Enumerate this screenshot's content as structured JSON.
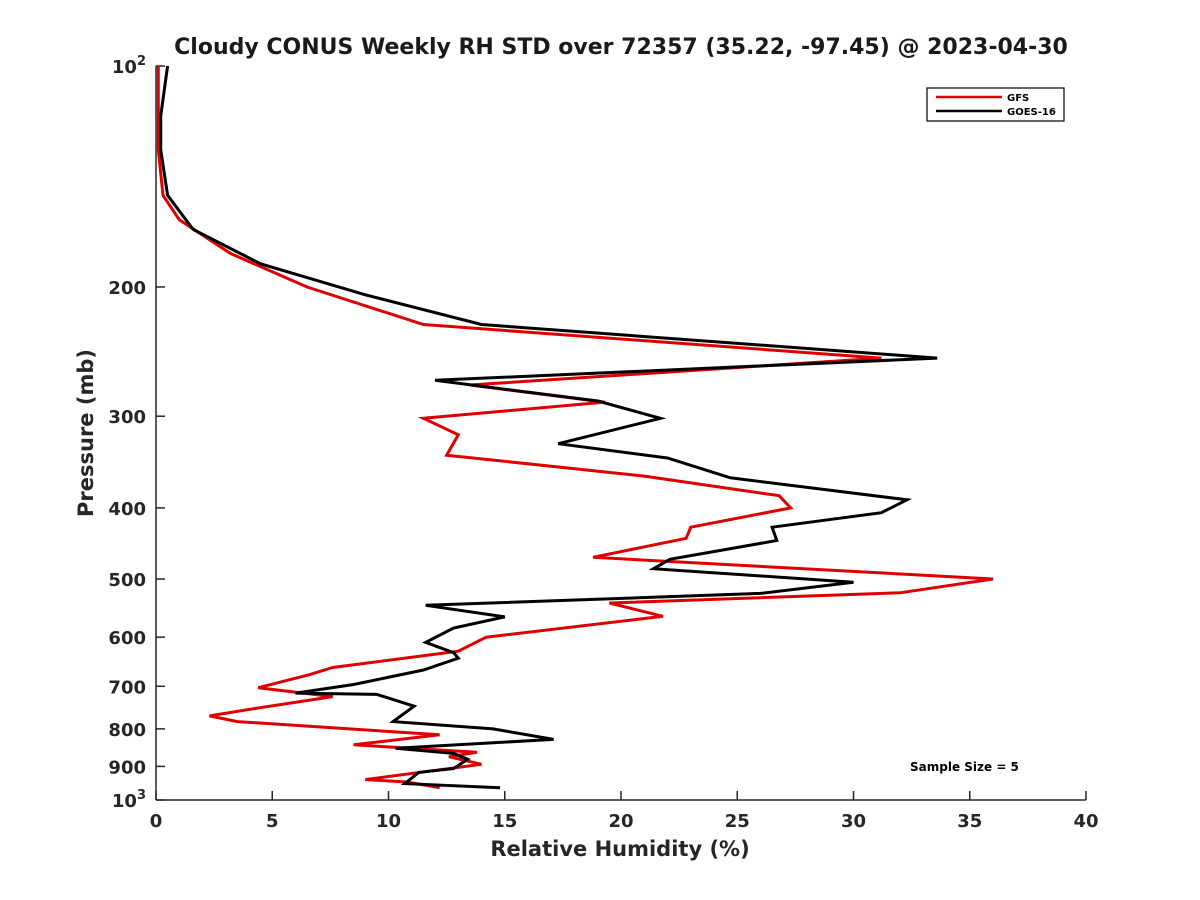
{
  "chart_data": {
    "type": "line",
    "title": "Cloudy CONUS Weekly RH STD over 72357 (35.22, -97.45) @ 2023-04-30",
    "xlabel": "Relative Humidity (%)",
    "ylabel": "Pressure (mb)",
    "xlim": [
      0,
      40
    ],
    "ylim": [
      1000,
      100
    ],
    "y_scale": "log",
    "y_reversed": true,
    "grid": false,
    "legend_position": "top-right",
    "x_ticks": [
      {
        "value": 0,
        "label": "0"
      },
      {
        "value": 5,
        "label": "5"
      },
      {
        "value": 10,
        "label": "10"
      },
      {
        "value": 15,
        "label": "15"
      },
      {
        "value": 20,
        "label": "20"
      },
      {
        "value": 25,
        "label": "25"
      },
      {
        "value": 30,
        "label": "30"
      },
      {
        "value": 35,
        "label": "35"
      },
      {
        "value": 40,
        "label": "40"
      }
    ],
    "y_ticks": [
      {
        "value": 100,
        "label": "10",
        "sup": "2"
      },
      {
        "value": 200,
        "label": "200"
      },
      {
        "value": 300,
        "label": "300"
      },
      {
        "value": 400,
        "label": "400"
      },
      {
        "value": 500,
        "label": "500"
      },
      {
        "value": 600,
        "label": "600"
      },
      {
        "value": 700,
        "label": "700"
      },
      {
        "value": 800,
        "label": "800"
      },
      {
        "value": 900,
        "label": "900"
      },
      {
        "value": 1000,
        "label": "10",
        "sup": "3"
      }
    ],
    "series": [
      {
        "name": "GFS",
        "color": "#e00000",
        "points": [
          [
            0.1,
            100
          ],
          [
            0.1,
            115
          ],
          [
            0.1,
            130
          ],
          [
            0.3,
            150
          ],
          [
            1.0,
            162
          ],
          [
            3.2,
            180
          ],
          [
            6.5,
            200
          ],
          [
            11.5,
            225
          ],
          [
            31.2,
            250
          ],
          [
            13.5,
            272
          ],
          [
            19.3,
            287
          ],
          [
            11.5,
            302
          ],
          [
            13.0,
            318
          ],
          [
            12.5,
            339
          ],
          [
            21.0,
            362
          ],
          [
            26.8,
            385
          ],
          [
            27.3,
            400
          ],
          [
            23.0,
            425
          ],
          [
            22.8,
            440
          ],
          [
            18.8,
            467
          ],
          [
            36.0,
            500
          ],
          [
            32.0,
            522
          ],
          [
            19.5,
            539
          ],
          [
            21.8,
            562
          ],
          [
            14.2,
            600
          ],
          [
            13.0,
            627
          ],
          [
            7.6,
            660
          ],
          [
            6.6,
            675
          ],
          [
            4.4,
            703
          ],
          [
            7.6,
            723
          ],
          [
            4.2,
            751
          ],
          [
            2.3,
            768
          ],
          [
            3.5,
            782
          ],
          [
            12.2,
            815
          ],
          [
            8.5,
            841
          ],
          [
            13.8,
            861
          ],
          [
            12.6,
            873
          ],
          [
            14.0,
            894
          ],
          [
            9.0,
            938
          ],
          [
            10.8,
            945
          ],
          [
            12.2,
            962
          ]
        ]
      },
      {
        "name": "GOES-16",
        "color": "#000000",
        "points": [
          [
            0.5,
            100
          ],
          [
            0.2,
            117
          ],
          [
            0.2,
            130
          ],
          [
            0.5,
            150
          ],
          [
            1.6,
            167
          ],
          [
            4.5,
            186
          ],
          [
            9.0,
            205
          ],
          [
            14.0,
            225
          ],
          [
            33.6,
            250
          ],
          [
            12.0,
            268
          ],
          [
            19.0,
            286
          ],
          [
            21.7,
            302
          ],
          [
            17.3,
            327
          ],
          [
            22.0,
            342
          ],
          [
            24.7,
            364
          ],
          [
            32.3,
            390
          ],
          [
            31.2,
            406
          ],
          [
            26.5,
            425
          ],
          [
            26.7,
            443
          ],
          [
            22.1,
            470
          ],
          [
            21.4,
            484
          ],
          [
            30.0,
            505
          ],
          [
            26.0,
            523
          ],
          [
            11.6,
            543
          ],
          [
            15.0,
            563
          ],
          [
            12.8,
            583
          ],
          [
            11.6,
            610
          ],
          [
            12.8,
            630
          ],
          [
            13.0,
            641
          ],
          [
            11.5,
            665
          ],
          [
            8.5,
            696
          ],
          [
            6.0,
            715
          ],
          [
            9.5,
            718
          ],
          [
            11.1,
            745
          ],
          [
            10.2,
            782
          ],
          [
            14.5,
            800
          ],
          [
            17.1,
            827
          ],
          [
            10.3,
            850
          ],
          [
            12.8,
            864
          ],
          [
            13.4,
            880
          ],
          [
            12.8,
            906
          ],
          [
            11.3,
            917
          ],
          [
            10.7,
            950
          ],
          [
            14.8,
            962
          ]
        ]
      }
    ],
    "annotations": [
      "Sample Size = 5"
    ]
  }
}
